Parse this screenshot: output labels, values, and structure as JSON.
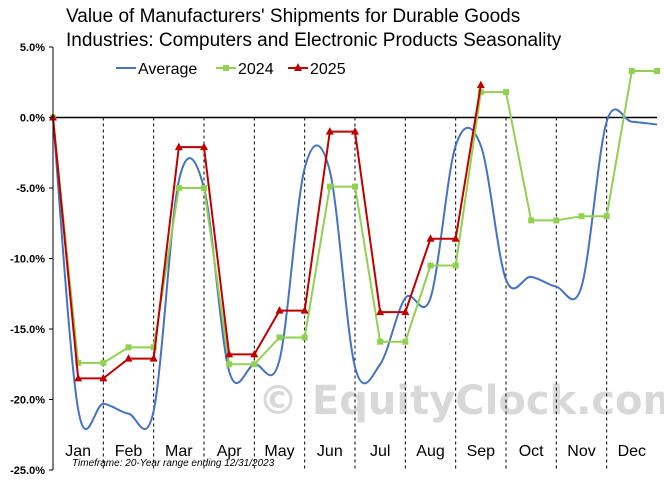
{
  "chart_data": {
    "type": "line",
    "title_lines": [
      "Value of Manufacturers' Shipments for Durable Goods",
      "Industries: Computers and Electronic Products Seasonality"
    ],
    "ylim": [
      -25,
      5
    ],
    "y_ticks": [
      5,
      0,
      -5,
      -10,
      -15,
      -20,
      -25
    ],
    "y_tick_labels": [
      "5.0%",
      "0.0%",
      "-5.0%",
      "-10.0%",
      "-15.0%",
      "-20.0%",
      "-25.0%"
    ],
    "categories": [
      "Jan",
      "Feb",
      "Mar",
      "Apr",
      "May",
      "Jun",
      "Jul",
      "Aug",
      "Sep",
      "Oct",
      "Nov",
      "Dec"
    ],
    "grid": "vertical dashed month dividers",
    "legend_position": "top",
    "footnote": "Timeframe: 20-Year range ending 12/31/2023",
    "watermark": "© EquityClock.com",
    "series": [
      {
        "name": "Average",
        "color": "#4472c4",
        "marker": "none",
        "smooth": true,
        "x": [
          0,
          0.5,
          1.0,
          1.5,
          2.0,
          2.5,
          3.0,
          3.5,
          4.0,
          4.5,
          5.0,
          5.5,
          6.0,
          6.5,
          7.0,
          7.5,
          8.0,
          8.5,
          9.0,
          9.5,
          10.0,
          10.5,
          11.0,
          11.5,
          12.0
        ],
        "y": [
          0,
          -20.7,
          -20.3,
          -21.0,
          -20.8,
          -4.5,
          -5.0,
          -18.0,
          -17.5,
          -17.2,
          -3.6,
          -3.8,
          -17.7,
          -17.5,
          -12.8,
          -12.8,
          -2.0,
          -2.0,
          -11.5,
          -11.3,
          -12.0,
          -12.0,
          -0.3,
          -0.3,
          -0.5
        ]
      },
      {
        "name": "2024",
        "color": "#92d050",
        "marker": "square",
        "x": [
          0,
          0.5,
          1.0,
          1.5,
          2.0,
          2.5,
          3.0,
          3.5,
          4.0,
          4.5,
          5.0,
          5.5,
          6.0,
          6.5,
          7.0,
          7.5,
          8.0,
          8.5,
          9.0,
          9.5,
          10.0,
          10.5,
          11.0,
          11.5,
          12.0
        ],
        "y": [
          0,
          -17.4,
          -17.4,
          -16.3,
          -16.3,
          -5.0,
          -5.0,
          -17.5,
          -17.5,
          -15.6,
          -15.6,
          -4.9,
          -4.9,
          -15.9,
          -15.9,
          -10.5,
          -10.5,
          1.8,
          1.8,
          -7.3,
          -7.3,
          -7.0,
          -7.0,
          3.3,
          3.3
        ]
      },
      {
        "name": "2025",
        "color": "#c00000",
        "marker": "triangle",
        "x": [
          0,
          0.5,
          1.0,
          1.5,
          2.0,
          2.5,
          3.0,
          3.5,
          4.0,
          4.5,
          5.0,
          5.5,
          6.0,
          6.5,
          7.0,
          7.5,
          8.0,
          8.5
        ],
        "y": [
          0,
          -18.5,
          -18.5,
          -17.1,
          -17.1,
          -2.1,
          -2.1,
          -16.8,
          -16.8,
          -13.7,
          -13.7,
          -1.0,
          -1.0,
          -13.8,
          -13.8,
          -8.6,
          -8.6,
          2.3
        ]
      }
    ]
  }
}
